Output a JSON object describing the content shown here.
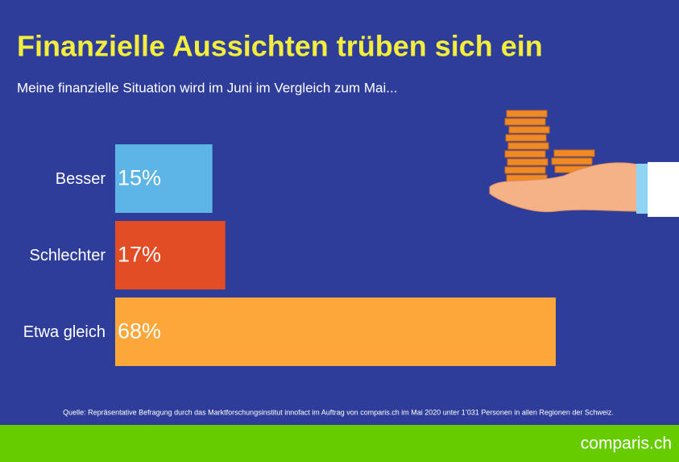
{
  "chart_data": {
    "type": "bar",
    "orientation": "horizontal",
    "title": "Finanzielle Aussichten trüben sich ein",
    "subtitle": "Meine finanzielle Situation wird im Juni im Vergleich zum Mai...",
    "categories": [
      "Besser",
      "Schlechter",
      "Etwa gleich"
    ],
    "values": [
      15,
      17,
      68
    ],
    "value_labels": [
      "15%",
      "17%",
      "68%"
    ],
    "colors": [
      "#5db4e6",
      "#e34d26",
      "#fda63a"
    ],
    "source": "Quelle: Repräsentative Befragung durch das Marktforschungsinstitut innofact im Auftrag von comparis.ch im Mai 2020 unter 1’031 Personen in allen Regionen der Schweiz.",
    "logo": "comparis.ch"
  }
}
